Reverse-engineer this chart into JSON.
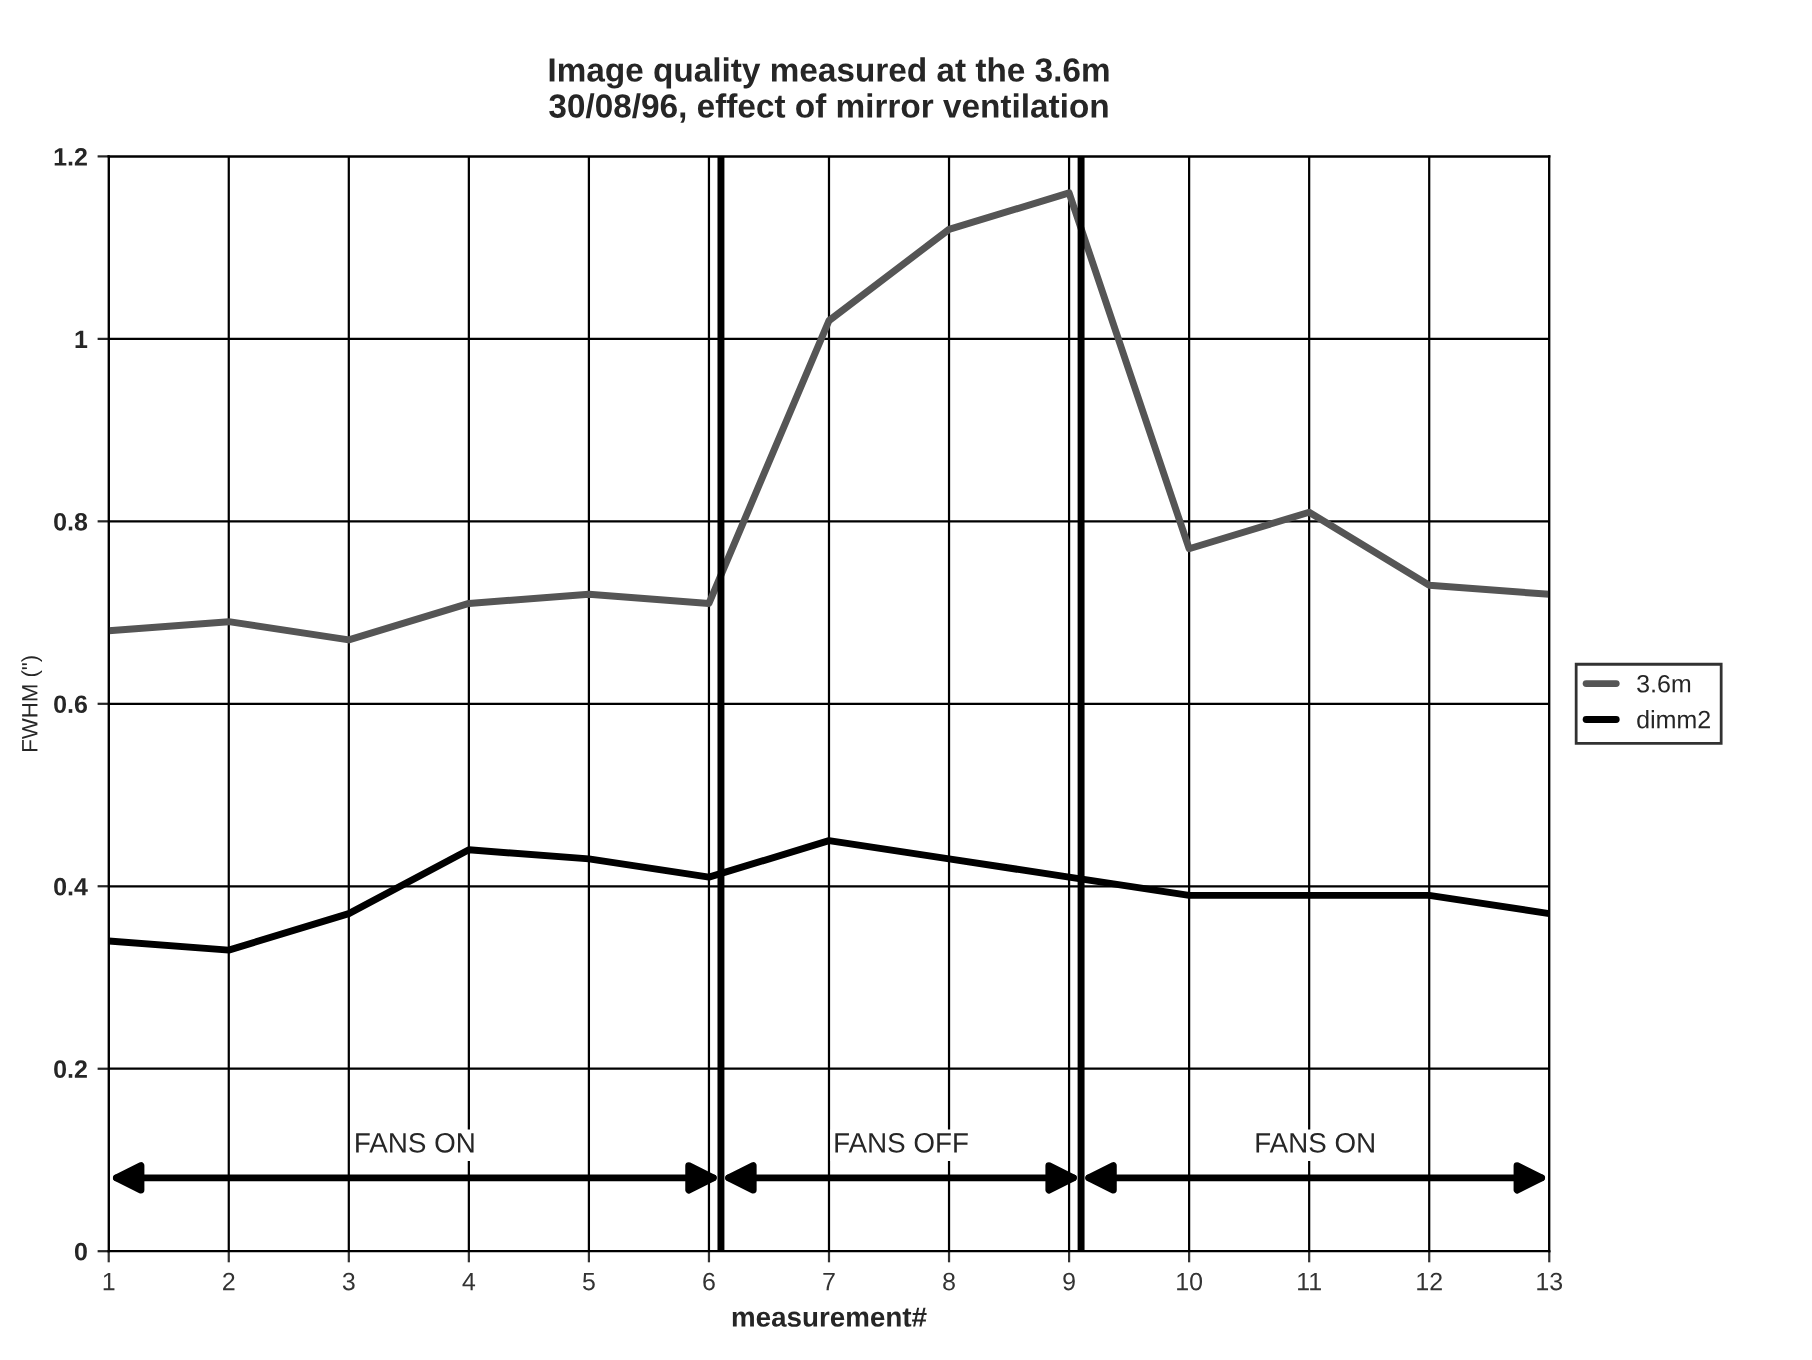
{
  "chart_data": {
    "type": "line",
    "title": "Image quality measured at the 3.6m\n30/08/96, effect of mirror ventilation",
    "xlabel": "measurement#",
    "ylabel": "FWHM (\")",
    "x": [
      1,
      2,
      3,
      4,
      5,
      6,
      7,
      8,
      9,
      10,
      11,
      12,
      13
    ],
    "series": [
      {
        "name": "3.6m",
        "color": "#555555",
        "values": [
          0.68,
          0.69,
          0.67,
          0.71,
          0.72,
          0.71,
          1.02,
          1.12,
          1.16,
          0.77,
          0.81,
          0.73,
          0.72
        ]
      },
      {
        "name": "dimm2",
        "color": "#000000",
        "values": [
          0.34,
          0.33,
          0.37,
          0.44,
          0.43,
          0.41,
          0.45,
          0.43,
          0.41,
          0.39,
          0.39,
          0.39,
          0.37
        ]
      }
    ],
    "xlim": [
      1,
      13
    ],
    "xticks": [
      1,
      2,
      3,
      4,
      5,
      6,
      7,
      8,
      9,
      10,
      11,
      12,
      13
    ],
    "ylim": [
      0,
      1.2
    ],
    "yticks": [
      0,
      0.2,
      0.4,
      0.6,
      0.8,
      1,
      1.2
    ],
    "ref_lines": [
      {
        "axis": "x",
        "value": 6.1,
        "color": "#000000"
      },
      {
        "axis": "x",
        "value": 9.1,
        "color": "#000000"
      }
    ],
    "annotations": [
      "FANS ON",
      "FANS OFF",
      "FANS ON"
    ],
    "grid": true,
    "legend": "right",
    "marker": "none",
    "line_style": "solid"
  }
}
